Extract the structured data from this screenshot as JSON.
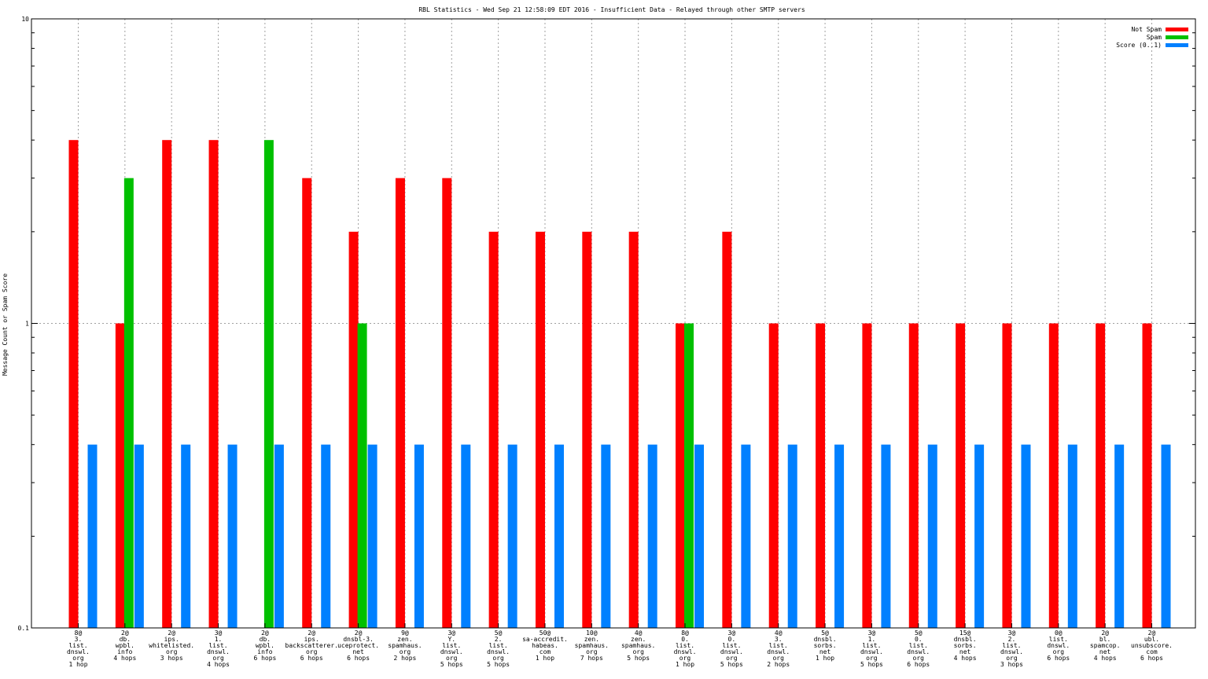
{
  "chart_data": {
    "type": "bar",
    "title": "RBL Statistics - Wed Sep 21 12:58:09 EDT 2016 - Insufficient Data - Relayed through other SMTP servers",
    "ylabel": "Message Count or Spam Score",
    "yscale": "log",
    "ylim": [
      0.1,
      10
    ],
    "yticks": [
      "10",
      "1",
      "0.1"
    ],
    "grid": true,
    "legend_position": "top-right",
    "categories": [
      [
        "8@",
        "3.",
        "list.",
        "dnswl.",
        "org",
        "1 hop"
      ],
      [
        "2@",
        "db.",
        "wpbl.",
        "info",
        "4 hops"
      ],
      [
        "2@",
        "ips.",
        "whitelisted.",
        "org",
        "3 hops"
      ],
      [
        "3@",
        "1.",
        "list.",
        "dnswl.",
        "org",
        "4 hops"
      ],
      [
        "2@",
        "db.",
        "wpbl.",
        "info",
        "6 hops"
      ],
      [
        "2@",
        "ips.",
        "backscatterer.",
        "org",
        "6 hops"
      ],
      [
        "2@",
        "dnsbl-3.",
        "uceprotect.",
        "net",
        "6 hops"
      ],
      [
        "9@",
        "zen.",
        "spamhaus.",
        "org",
        "2 hops"
      ],
      [
        "3@",
        "Y.",
        "list.",
        "dnswl.",
        "org",
        "5 hops"
      ],
      [
        "5@",
        "2.",
        "list.",
        "dnswl.",
        "org",
        "5 hops"
      ],
      [
        "50@",
        "sa-accredit.",
        "habeas.",
        "com",
        "1 hop"
      ],
      [
        "10@",
        "zen.",
        "spamhaus.",
        "org",
        "7 hops"
      ],
      [
        "4@",
        "zen.",
        "spamhaus.",
        "org",
        "5 hops"
      ],
      [
        "8@",
        "0.",
        "list.",
        "dnswl.",
        "org",
        "1 hop"
      ],
      [
        "3@",
        "0.",
        "list.",
        "dnswl.",
        "org",
        "5 hops"
      ],
      [
        "4@",
        "3.",
        "list.",
        "dnswl.",
        "org",
        "2 hops"
      ],
      [
        "5@",
        "dnsbl.",
        "sorbs.",
        "net",
        "1 hop"
      ],
      [
        "3@",
        "1.",
        "list.",
        "dnswl.",
        "org",
        "5 hops"
      ],
      [
        "5@",
        "0.",
        "list.",
        "dnswl.",
        "org",
        "6 hops"
      ],
      [
        "15@",
        "dnsbl.",
        "sorbs.",
        "net",
        "4 hops"
      ],
      [
        "3@",
        "2.",
        "list.",
        "dnswl.",
        "org",
        "3 hops"
      ],
      [
        "0@",
        "list.",
        "dnswl.",
        "org",
        "6 hops"
      ],
      [
        "2@",
        "bl.",
        "spamcop.",
        "net",
        "4 hops"
      ],
      [
        "2@",
        "ubl.",
        "unsubscore.",
        "com",
        "6 hops"
      ]
    ],
    "series": [
      {
        "name": "Not Spam",
        "color": "#ff0000",
        "values": [
          4,
          1,
          4,
          4,
          null,
          3,
          2,
          3,
          3,
          2,
          2,
          2,
          2,
          1,
          2,
          1,
          1,
          1,
          1,
          1,
          1,
          1,
          1,
          1
        ]
      },
      {
        "name": "Spam",
        "color": "#00c000",
        "values": [
          null,
          3,
          null,
          null,
          4,
          null,
          1,
          null,
          null,
          null,
          null,
          null,
          null,
          1,
          null,
          null,
          null,
          null,
          null,
          null,
          null,
          null,
          null,
          null
        ]
      },
      {
        "name": "Score (0..1)",
        "color": "#0080ff",
        "values": [
          0.4,
          0.4,
          0.4,
          0.4,
          0.4,
          0.4,
          0.4,
          0.4,
          0.4,
          0.4,
          0.4,
          0.4,
          0.4,
          0.4,
          0.4,
          0.4,
          0.4,
          0.4,
          0.4,
          0.4,
          0.4,
          0.4,
          0.4,
          0.4
        ]
      }
    ]
  }
}
